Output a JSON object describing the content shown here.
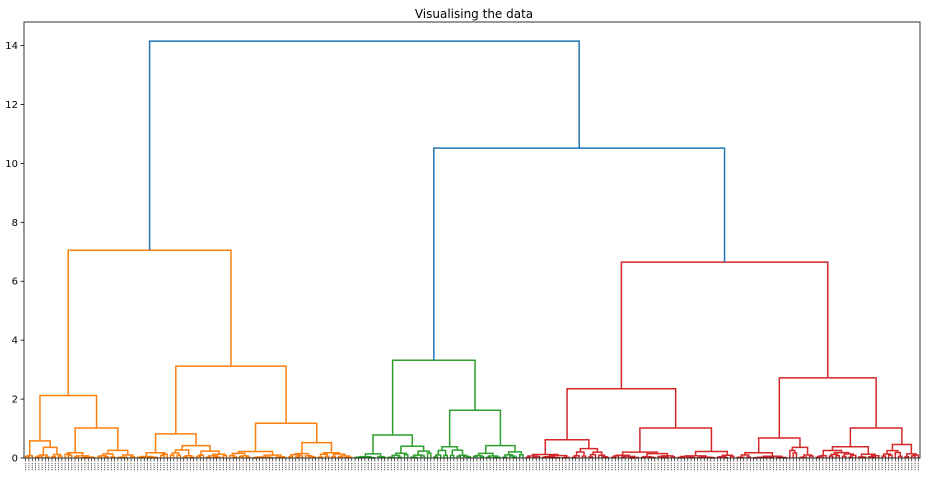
{
  "chart_data": {
    "type": "dendrogram",
    "title": "Visualising the data",
    "xlabel": "",
    "ylabel": "",
    "ylim": [
      0,
      14.8
    ],
    "y_ticks": [
      0,
      2,
      4,
      6,
      8,
      10,
      12,
      14
    ],
    "y_tick_labels": [
      "0",
      "2",
      "4",
      "6",
      "8",
      "10",
      "12",
      "14"
    ],
    "grid": false,
    "colors": {
      "link_above_threshold": "#1f77b4",
      "cluster_1": "#ff7f0e",
      "cluster_2": "#2ca02c",
      "cluster_3": "#d62728"
    },
    "clusters": [
      {
        "id": "cluster_1",
        "color": "#ff7f0e",
        "leaf_count": 100
      },
      {
        "id": "cluster_2",
        "color": "#2ca02c",
        "leaf_count": 52
      },
      {
        "id": "cluster_3",
        "color": "#d62728",
        "leaf_count": 120
      }
    ],
    "merges": [
      {
        "name": "root",
        "height": 14.15,
        "left": "cluster_1",
        "right": "clusters_2_3",
        "color": "#1f77b4"
      },
      {
        "name": "clusters_2_3",
        "height": 10.52,
        "left": "cluster_2",
        "right": "cluster_3",
        "color": "#1f77b4"
      },
      {
        "name": "cluster_1",
        "height": 7.05,
        "color": "#ff7f0e"
      },
      {
        "name": "cluster_1a",
        "height": 2.12,
        "color": "#ff7f0e"
      },
      {
        "name": "cluster_1b",
        "height": 3.12,
        "color": "#ff7f0e"
      },
      {
        "name": "cluster_2",
        "height": 3.32,
        "color": "#2ca02c"
      },
      {
        "name": "cluster_3",
        "height": 6.65,
        "color": "#d62728"
      },
      {
        "name": "cluster_3a",
        "height": 2.35,
        "color": "#d62728"
      },
      {
        "name": "cluster_3b",
        "height": 2.72,
        "color": "#d62728"
      }
    ]
  }
}
